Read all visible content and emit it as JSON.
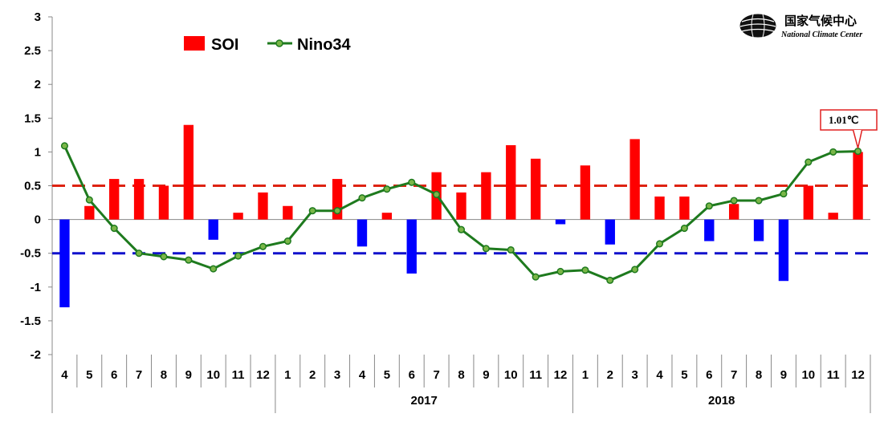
{
  "logo": {
    "name_cn": "国家气候中心",
    "name_en": "National Climate Center"
  },
  "colors": {
    "soi_positive": "#ff0000",
    "soi_negative": "#0000ff",
    "nino34_line": "#1e7a1e",
    "nino34_marker_fill": "#7ab648",
    "threshold_warm": "#dd2211",
    "threshold_cold": "#1010cc"
  },
  "chart_data": {
    "type": "bar",
    "title": "",
    "xlabel": "",
    "ylabel": "",
    "ylim": [
      -2,
      3
    ],
    "yticks": [
      -2,
      -1.5,
      -1,
      -0.5,
      0,
      0.5,
      1,
      1.5,
      2,
      2.5,
      3
    ],
    "ytick_labels": [
      "-2",
      "-1.5",
      "-1",
      "-0.5",
      "0",
      "0.5",
      "1",
      "1.5",
      "2",
      "2.5",
      "3"
    ],
    "grid": false,
    "legend_position": "top-left",
    "categories": [
      "4",
      "5",
      "6",
      "7",
      "8",
      "9",
      "10",
      "11",
      "12",
      "1",
      "2",
      "3",
      "4",
      "5",
      "6",
      "7",
      "8",
      "9",
      "10",
      "11",
      "12",
      "1",
      "2",
      "3",
      "4",
      "5",
      "6",
      "7",
      "8",
      "9",
      "10",
      "11",
      "12"
    ],
    "year_groups": [
      {
        "label": "",
        "start": 0,
        "end": 8
      },
      {
        "label": "2017",
        "start": 9,
        "end": 20
      },
      {
        "label": "2018",
        "start": 21,
        "end": 32
      }
    ],
    "series": [
      {
        "name": "SOI",
        "type": "bar",
        "values": [
          -1.3,
          0.2,
          0.6,
          0.6,
          0.5,
          1.4,
          -0.3,
          0.1,
          0.4,
          0.2,
          0.0,
          0.6,
          -0.4,
          0.1,
          -0.8,
          0.7,
          0.4,
          0.7,
          1.1,
          0.9,
          -0.07,
          0.8,
          -0.37,
          1.19,
          0.34,
          0.34,
          -0.32,
          0.23,
          -0.32,
          -0.91,
          0.5,
          0.1,
          1.0
        ]
      },
      {
        "name": "Nino34",
        "type": "line",
        "values": [
          1.09,
          0.29,
          -0.13,
          -0.5,
          -0.55,
          -0.6,
          -0.73,
          -0.54,
          -0.4,
          -0.32,
          0.13,
          0.13,
          0.32,
          0.45,
          0.55,
          0.37,
          -0.15,
          -0.43,
          -0.45,
          -0.85,
          -0.77,
          -0.75,
          -0.9,
          -0.74,
          -0.36,
          -0.13,
          0.2,
          0.28,
          0.28,
          0.38,
          0.85,
          1.0,
          1.01
        ]
      }
    ],
    "reference_lines": [
      0.5,
      -0.5
    ],
    "annotation": {
      "index": 32,
      "text": "1.01℃"
    }
  }
}
